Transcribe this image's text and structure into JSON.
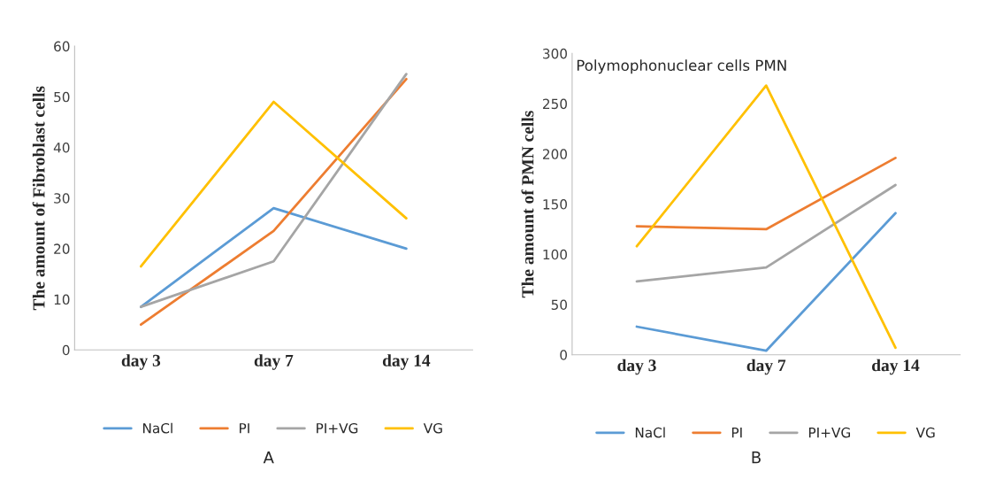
{
  "chart_data": [
    {
      "type": "line",
      "ylabel": "The amount of Fibroblast cells",
      "categories": [
        "day 3",
        "day 7",
        "day 14"
      ],
      "ylim": [
        0,
        60
      ],
      "yticks": [
        0,
        10,
        20,
        30,
        40,
        50,
        60
      ],
      "grid": false,
      "legend": "bottom",
      "annotations": [
        "A"
      ],
      "series": [
        {
          "name": "NaCl",
          "color": "#5b9bd5",
          "values": [
            8.5,
            28,
            20
          ]
        },
        {
          "name": "PI",
          "color": "#ed7d31",
          "values": [
            5,
            23.5,
            53.5
          ]
        },
        {
          "name": "PI+VG",
          "color": "#a5a5a5",
          "values": [
            8.5,
            17.5,
            54.5
          ]
        },
        {
          "name": "VG",
          "color": "#ffc000",
          "values": [
            16.5,
            49,
            26
          ]
        }
      ]
    },
    {
      "type": "line",
      "title": "Polymophonuclear cells PMN",
      "ylabel": "The amount of PMN cells",
      "categories": [
        "day 3",
        "day 7",
        "day 14"
      ],
      "ylim": [
        0,
        300
      ],
      "yticks": [
        0,
        50,
        100,
        150,
        200,
        250,
        300
      ],
      "grid": false,
      "legend": "bottom",
      "annotations": [
        "B"
      ],
      "series": [
        {
          "name": "NaCl",
          "color": "#5b9bd5",
          "values": [
            28,
            4,
            141
          ]
        },
        {
          "name": "PI",
          "color": "#ed7d31",
          "values": [
            128,
            125,
            196
          ]
        },
        {
          "name": "PI+VG",
          "color": "#a5a5a5",
          "values": [
            73,
            87,
            169
          ]
        },
        {
          "name": "VG",
          "color": "#ffc000",
          "values": [
            108,
            268,
            7
          ]
        }
      ]
    }
  ]
}
